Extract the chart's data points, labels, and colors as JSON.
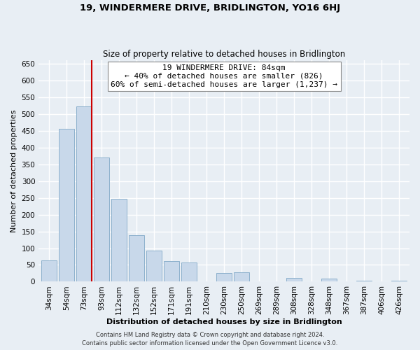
{
  "title": "19, WINDERMERE DRIVE, BRIDLINGTON, YO16 6HJ",
  "subtitle": "Size of property relative to detached houses in Bridlington",
  "xlabel": "Distribution of detached houses by size in Bridlington",
  "ylabel": "Number of detached properties",
  "bar_labels": [
    "34sqm",
    "54sqm",
    "73sqm",
    "93sqm",
    "112sqm",
    "132sqm",
    "152sqm",
    "171sqm",
    "191sqm",
    "210sqm",
    "230sqm",
    "250sqm",
    "269sqm",
    "289sqm",
    "308sqm",
    "328sqm",
    "348sqm",
    "367sqm",
    "387sqm",
    "406sqm",
    "426sqm"
  ],
  "bar_heights": [
    63,
    455,
    523,
    370,
    247,
    138,
    93,
    62,
    57,
    0,
    27,
    28,
    0,
    0,
    12,
    0,
    10,
    0,
    3,
    0,
    2
  ],
  "bar_color": "#c8d8ea",
  "bar_edge_color": "#8cb0cc",
  "vline_color": "#cc0000",
  "vline_x_index": 2,
  "ylim": [
    0,
    660
  ],
  "yticks": [
    0,
    50,
    100,
    150,
    200,
    250,
    300,
    350,
    400,
    450,
    500,
    550,
    600,
    650
  ],
  "annotation_line1": "19 WINDERMERE DRIVE: 84sqm",
  "annotation_line2": "← 40% of detached houses are smaller (826)",
  "annotation_line3": "60% of semi-detached houses are larger (1,237) →",
  "annotation_box_color": "#ffffff",
  "annotation_box_edge": "#888888",
  "footer1": "Contains HM Land Registry data © Crown copyright and database right 2024.",
  "footer2": "Contains public sector information licensed under the Open Government Licence v3.0.",
  "bg_color": "#e8eef4",
  "plot_bg_color": "#e8eef4",
  "grid_color": "#ffffff",
  "title_fontsize": 9.5,
  "subtitle_fontsize": 8.5,
  "axis_label_fontsize": 8,
  "tick_fontsize": 7.5,
  "annotation_fontsize": 8,
  "footer_fontsize": 6
}
